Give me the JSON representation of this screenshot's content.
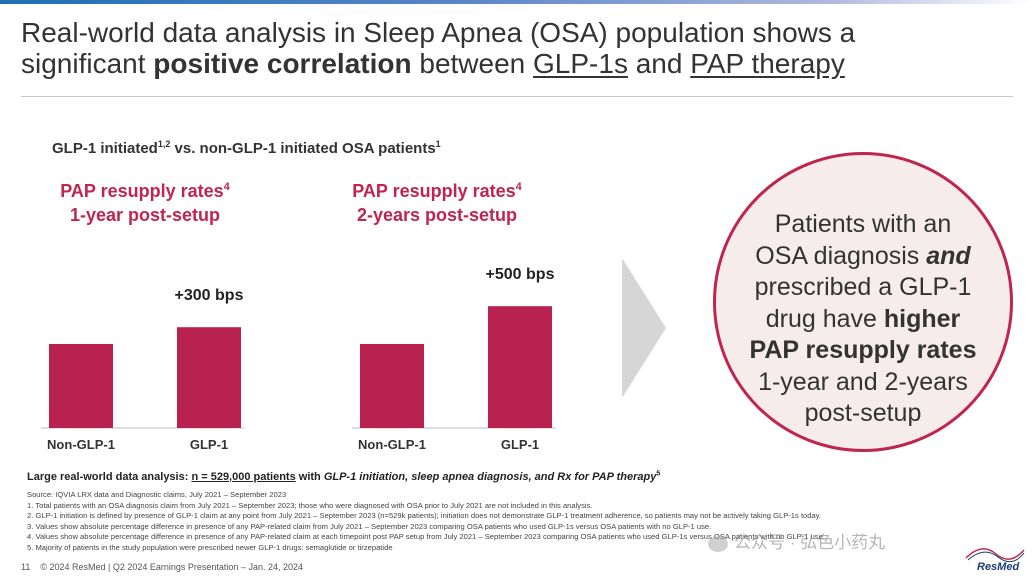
{
  "header": {
    "title_part1": "Real-world data analysis in Sleep Apnea (OSA) population shows a",
    "title_part2_pre": "significant ",
    "title_bold": "positive correlation",
    "title_mid": " between ",
    "title_u1": "GLP-1s",
    "title_and": " and ",
    "title_u2": "PAP therapy"
  },
  "subtitle": {
    "a": "GLP-1 initiated",
    "a_sup": "1,2",
    "b": " vs. non-GLP-1 initiated OSA patients",
    "b_sup": "1"
  },
  "chart_data": [
    {
      "type": "bar",
      "title_line1": "PAP resupply rates",
      "title_sup": "4",
      "title_line2": "1-year post-setup",
      "categories": [
        "Non-GLP-1",
        "GLP-1"
      ],
      "values": [
        1.0,
        1.2
      ],
      "annotation": "+300 bps",
      "bar_color": "#b92150"
    },
    {
      "type": "bar",
      "title_line1": "PAP resupply rates",
      "title_sup": "4",
      "title_line2": "2-years post-setup",
      "categories": [
        "Non-GLP-1",
        "GLP-1"
      ],
      "values": [
        1.0,
        1.45
      ],
      "annotation": "+500 bps",
      "bar_color": "#b92150"
    }
  ],
  "callout": {
    "l1": "Patients with an",
    "l2a": "OSA diagnosis ",
    "l2b": "and",
    "l3": "prescribed a GLP-1",
    "l4a": "drug have ",
    "l4b": "higher",
    "l5": "PAP resupply rates",
    "l6": "1-year and 2-years",
    "l7": "post-setup"
  },
  "summary": {
    "pre": "Large real-world data analysis: ",
    "count": "n = 529,000 patients",
    "mid": " with ",
    "italic": "GLP-1 initiation, sleep apnea diagnosis, and Rx for PAP therapy",
    "sup": "5"
  },
  "footnotes": [
    "Source: IQVIA LRX data and Diagnostic claims, July 2021 – September 2023",
    "1.   Total patients with an OSA diagnosis claim from July 2021 – September 2023; those who were diagnosed with OSA prior to July 2021 are not included in this analysis.",
    "2.   GLP-1 initiation is defined by presence of GLP-1 claim at any point from July 2021 – September 2023 (n=529k patients); initiation does not demonstrate GLP-1 treatment adherence, so patients may not be actively taking GLP-1s today.",
    "3.   Values show absolute percentage difference in presence of any PAP-related claim from July 2021 – September 2023 comparing OSA patients who used GLP-1s versus OSA patients with no GLP-1 use.",
    "4.   Values show absolute percentage difference in presence of any PAP-related claim at each timepoint post PAP setup from July 2021 – September 2023 comparing OSA patients who used GLP-1s versus OSA patients with no GLP-1 use.",
    "5.   Majority of patients in the study population were prescribed newer GLP-1 drugs: semaglutide or tirzepatide"
  ],
  "footer": {
    "page": "11",
    "text": "© 2024 ResMed  |  Q2 2024 Earnings Presentation – Jan. 24, 2024"
  },
  "watermark": "公众号 · 弘色小药丸",
  "logo_text": "ResMed",
  "colors": {
    "accent": "#c0254f",
    "bar": "#b92150",
    "circle_fill": "#f6ecec"
  }
}
